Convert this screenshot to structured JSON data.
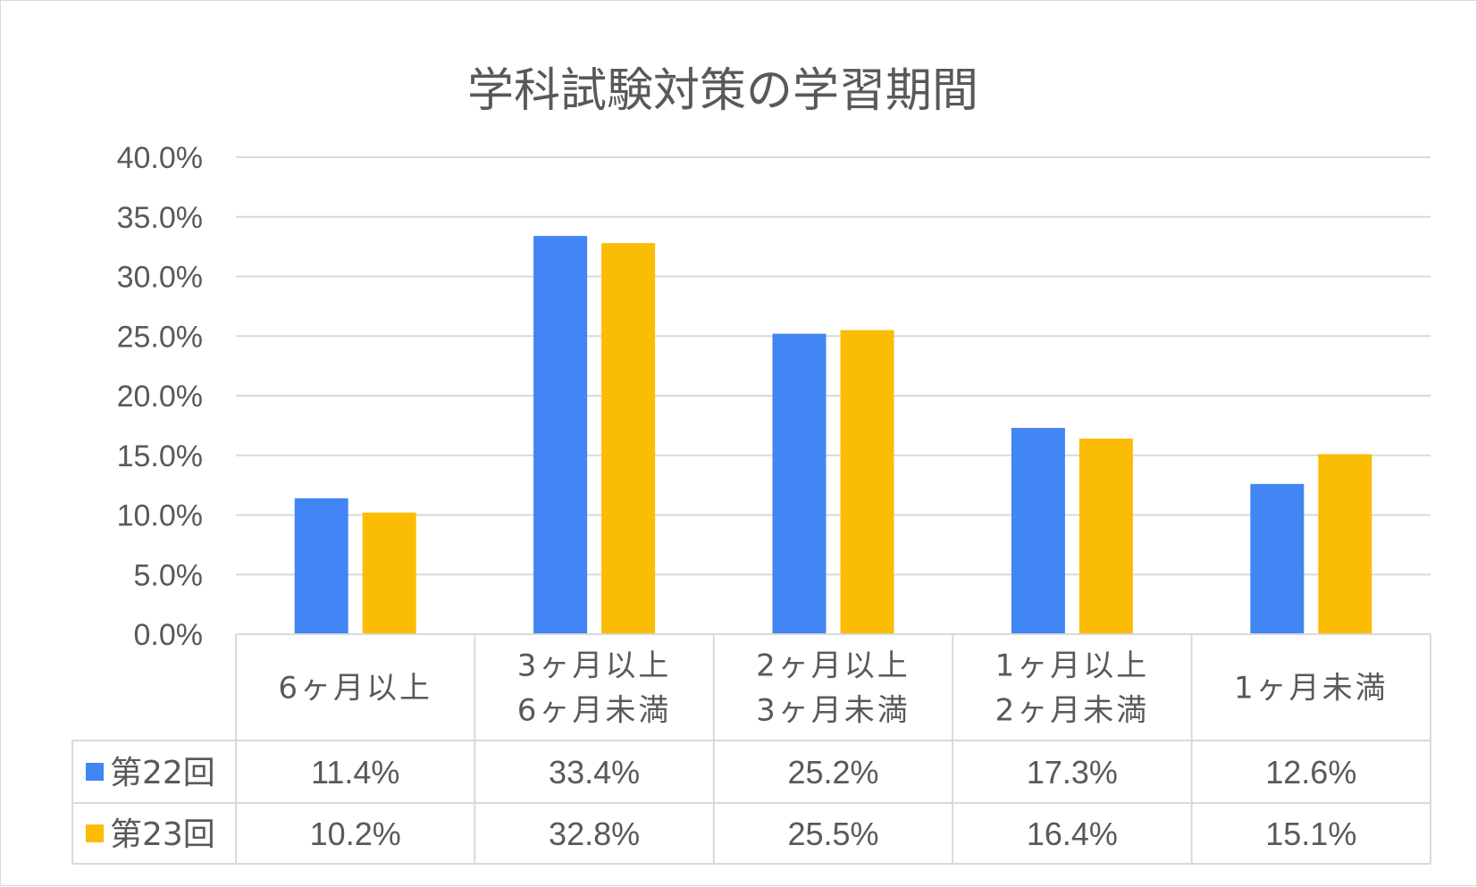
{
  "colors": {
    "series_1": "#4285F4",
    "series_2": "#FBBC04",
    "grid": "#d9d9d9",
    "text": "#595959"
  },
  "chart_data": {
    "type": "bar",
    "title": "学科試験対策の学習期間",
    "categories": [
      [
        "6ヶ月以上"
      ],
      [
        "3ヶ月以上",
        "6ヶ月未満"
      ],
      [
        "2ヶ月以上",
        "3ヶ月未満"
      ],
      [
        "1ヶ月以上",
        "2ヶ月未満"
      ],
      [
        "1ヶ月未満"
      ]
    ],
    "series": [
      {
        "name": "第22回",
        "values": [
          11.4,
          33.4,
          25.2,
          17.3,
          12.6
        ],
        "labels": [
          "11.4%",
          "33.4%",
          "25.2%",
          "17.3%",
          "12.6%"
        ]
      },
      {
        "name": "第23回",
        "values": [
          10.2,
          32.8,
          25.5,
          16.4,
          15.1
        ],
        "labels": [
          "10.2%",
          "32.8%",
          "25.5%",
          "16.4%",
          "15.1%"
        ]
      }
    ],
    "ylim": [
      0,
      40
    ],
    "yticks": [
      "0.0%",
      "5.0%",
      "10.0%",
      "15.0%",
      "20.0%",
      "25.0%",
      "30.0%",
      "35.0%",
      "40.0%"
    ],
    "grid": true,
    "legend": "data-table",
    "xlabel": "",
    "ylabel": ""
  }
}
